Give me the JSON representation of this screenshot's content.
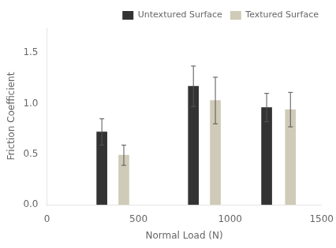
{
  "chart_data": {
    "type": "bar",
    "xlabel": "Normal Load (N)",
    "ylabel": "Friction Coefficient",
    "series": [
      {
        "name": "Untextured Surface",
        "color": "#333333",
        "x": [
          300,
          800,
          1200
        ],
        "values": [
          0.72,
          1.17,
          0.96
        ],
        "errors": [
          0.13,
          0.2,
          0.14
        ]
      },
      {
        "name": "Textured Surface",
        "color": "#d0cbb8",
        "x": [
          420,
          920,
          1330
        ],
        "values": [
          0.49,
          1.03,
          0.94
        ],
        "errors": [
          0.1,
          0.23,
          0.17
        ]
      }
    ],
    "xlim": [
      0,
      1500
    ],
    "xticks": [
      0,
      500,
      1000,
      1500
    ],
    "ylim": [
      0,
      1.75
    ],
    "yticks": [
      {
        "value": 0,
        "label": "0.0"
      },
      0.5,
      {
        "value": 1,
        "label": "1.0"
      },
      1.5
    ],
    "grid": false,
    "legend": "upper right"
  }
}
